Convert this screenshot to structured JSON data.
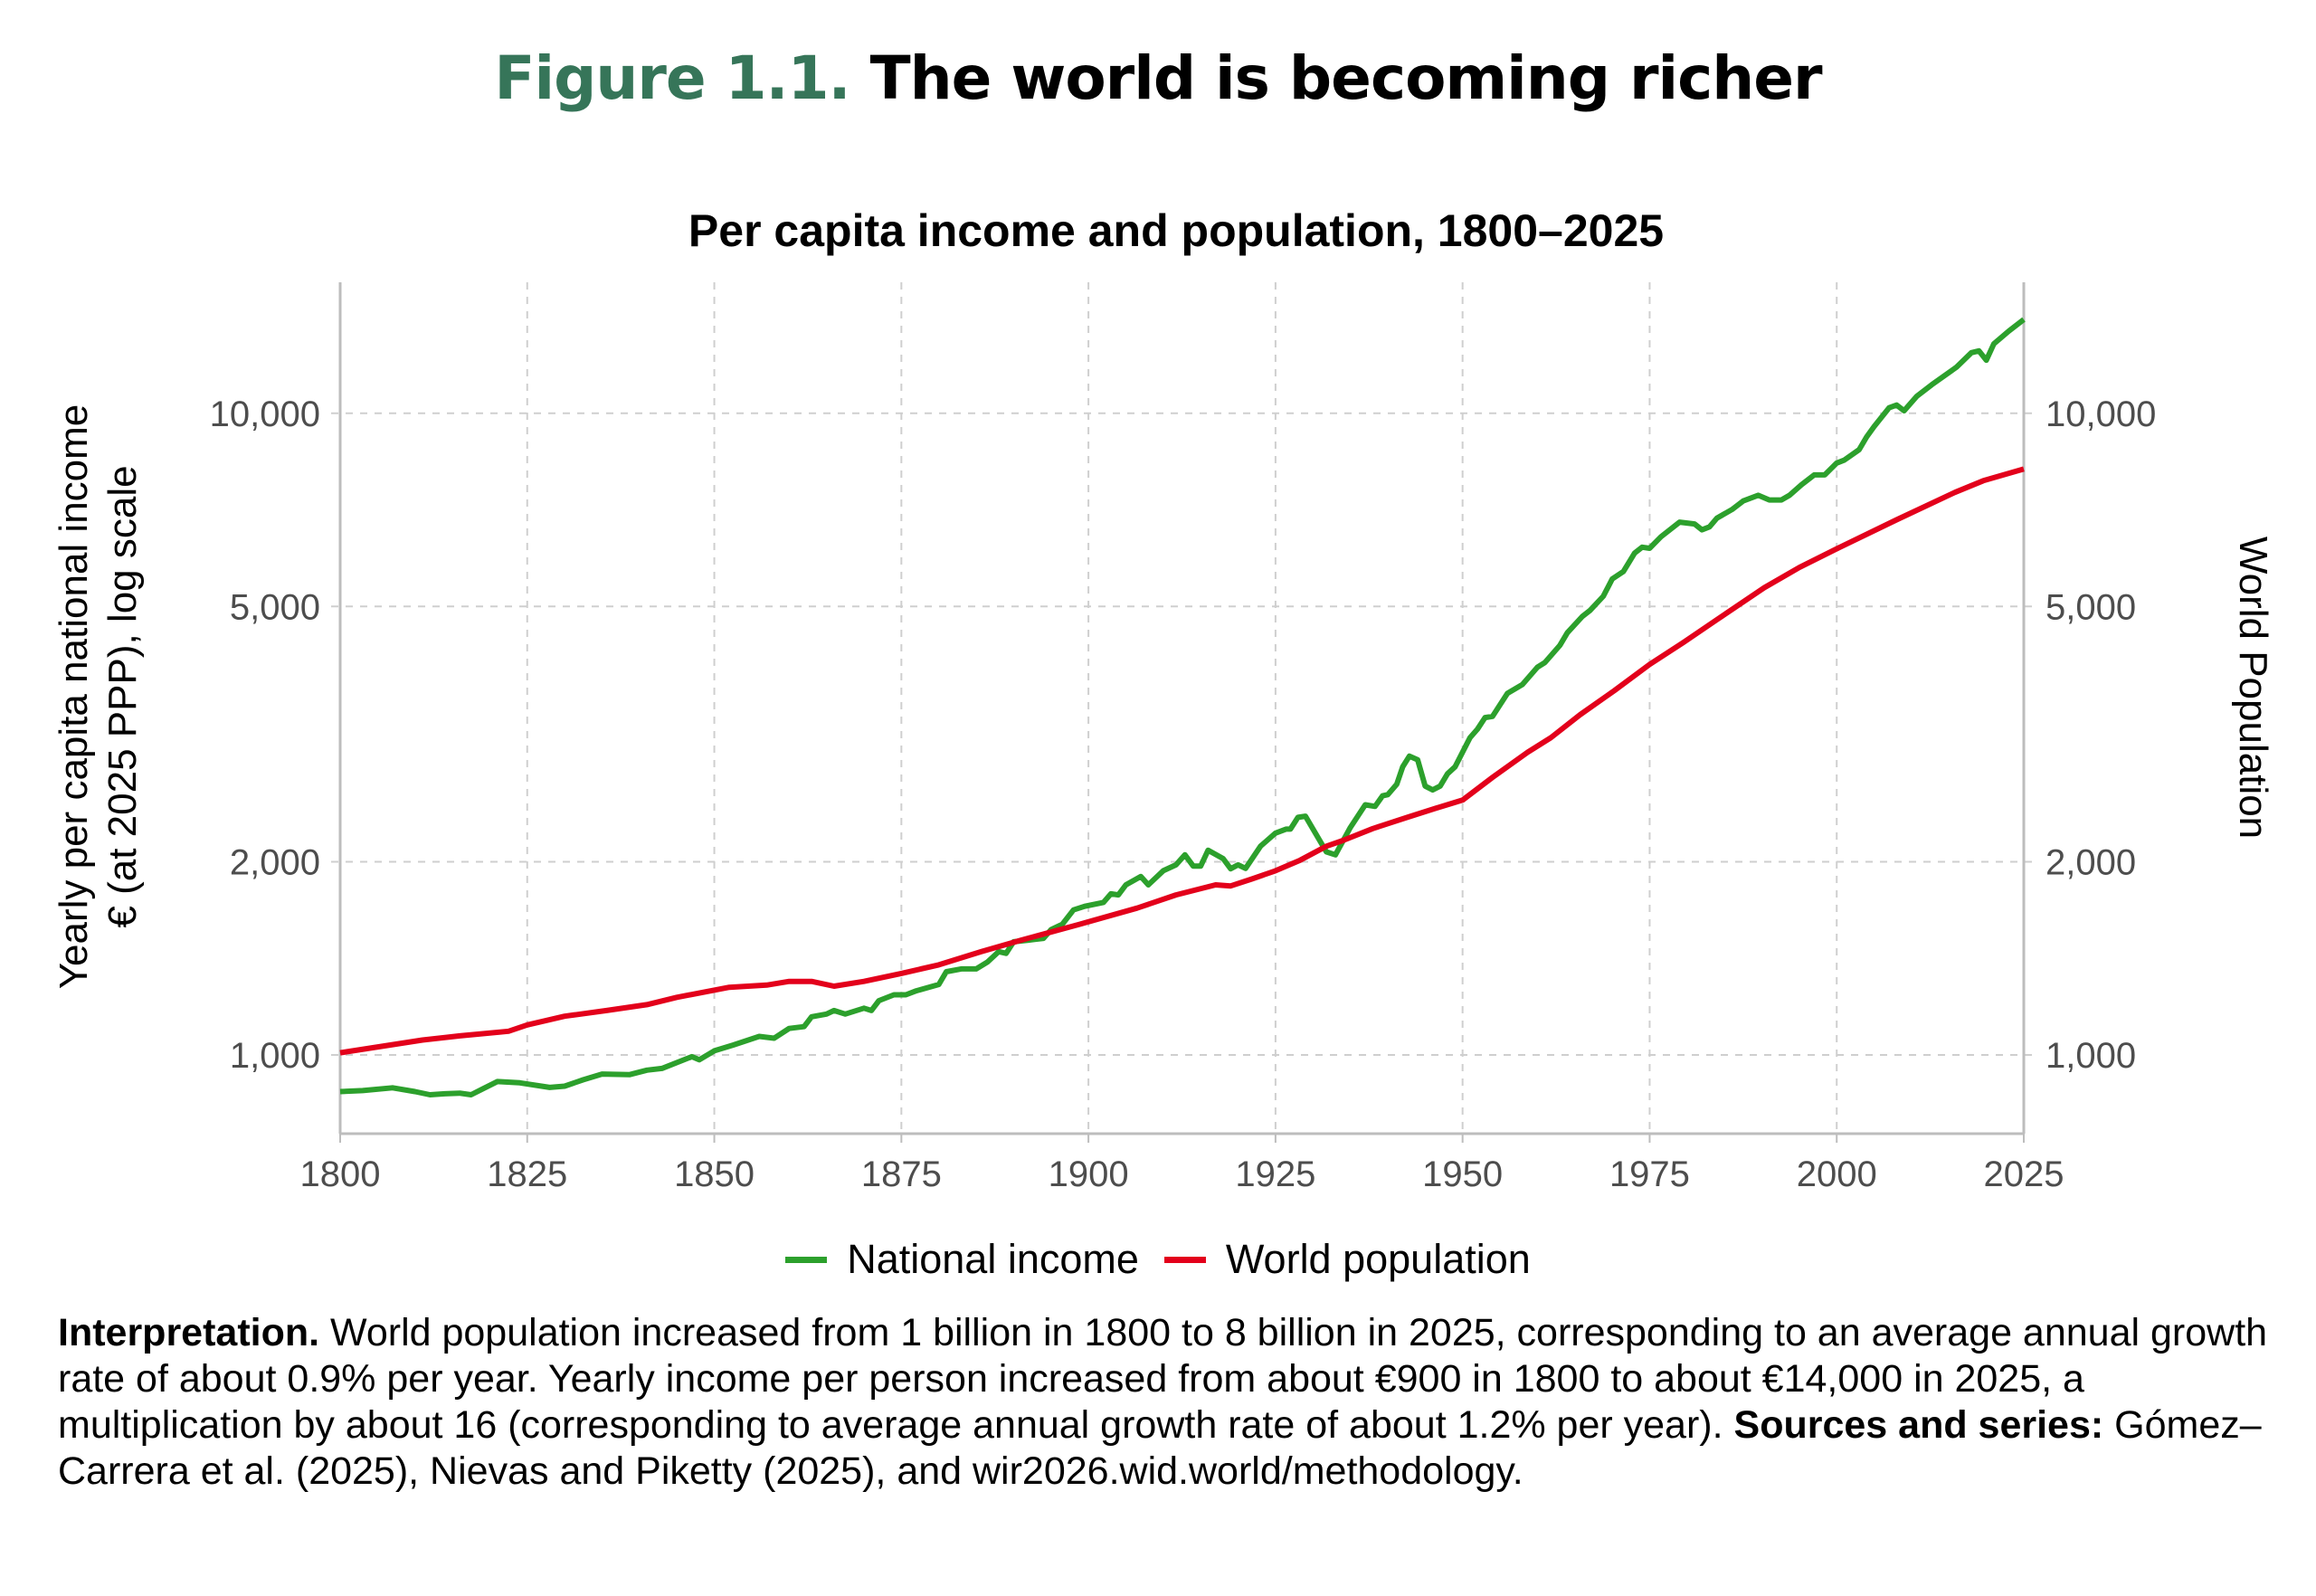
{
  "figure": {
    "label": "Figure 1.1.",
    "title": "The world is becoming richer",
    "label_color": "#367559"
  },
  "chart_data": {
    "type": "line",
    "title": "Per capita income and population, 1800–2025",
    "ylabel_line1": "Yearly per capita national income",
    "ylabel_line2": "€ (at 2025 PPP), log scale",
    "y2label": "World Population",
    "xlabel": "",
    "y_scale": "log",
    "xlim": [
      1800,
      2025
    ],
    "ylim": [
      754,
      16000
    ],
    "x_ticks": [
      "1800",
      "1825",
      "1850",
      "1875",
      "1900",
      "1925",
      "1950",
      "1975",
      "2000",
      "2025"
    ],
    "y_ticks": [
      {
        "value": 1000,
        "label": "1,000"
      },
      {
        "value": 2000,
        "label": "2,000"
      },
      {
        "value": 5000,
        "label": "5,000"
      },
      {
        "value": 10000,
        "label": "10,000"
      }
    ],
    "grid": true,
    "legend_position": "bottom",
    "series": [
      {
        "name": "National income",
        "color": "#2ca02c",
        "points": [
          [
            1800,
            877
          ],
          [
            1803,
            880
          ],
          [
            1807,
            889
          ],
          [
            1810,
            877
          ],
          [
            1812,
            867
          ],
          [
            1814,
            870
          ],
          [
            1816,
            872
          ],
          [
            1817.5,
            867
          ],
          [
            1819,
            885
          ],
          [
            1821,
            909
          ],
          [
            1824,
            905
          ],
          [
            1828,
            890
          ],
          [
            1830,
            894
          ],
          [
            1832.5,
            915
          ],
          [
            1835,
            934
          ],
          [
            1838.7,
            932
          ],
          [
            1841,
            947
          ],
          [
            1843,
            953
          ],
          [
            1847,
            994
          ],
          [
            1848,
            983
          ],
          [
            1850,
            1015
          ],
          [
            1852.5,
            1036
          ],
          [
            1856,
            1069
          ],
          [
            1858,
            1062
          ],
          [
            1860,
            1100
          ],
          [
            1862,
            1107
          ],
          [
            1863,
            1147
          ],
          [
            1865,
            1158
          ],
          [
            1866,
            1173
          ],
          [
            1867.5,
            1158
          ],
          [
            1870,
            1183
          ],
          [
            1871,
            1173
          ],
          [
            1872,
            1215
          ],
          [
            1874,
            1241
          ],
          [
            1875.6,
            1241
          ],
          [
            1877,
            1259
          ],
          [
            1880,
            1288
          ],
          [
            1881,
            1348
          ],
          [
            1883,
            1362
          ],
          [
            1885,
            1362
          ],
          [
            1886.5,
            1396
          ],
          [
            1888,
            1449
          ],
          [
            1889,
            1440
          ],
          [
            1890,
            1501
          ],
          [
            1892,
            1510
          ],
          [
            1894,
            1520
          ],
          [
            1895,
            1568
          ],
          [
            1896.5,
            1598
          ],
          [
            1898,
            1683
          ],
          [
            1899.5,
            1705
          ],
          [
            1902,
            1729
          ],
          [
            1903,
            1783
          ],
          [
            1904,
            1776
          ],
          [
            1905,
            1841
          ],
          [
            1907,
            1897
          ],
          [
            1908,
            1841
          ],
          [
            1910,
            1937
          ],
          [
            1911.7,
            1978
          ],
          [
            1912.9,
            2051
          ],
          [
            1914,
            1970
          ],
          [
            1915,
            1970
          ],
          [
            1916,
            2085
          ],
          [
            1918,
            2023
          ],
          [
            1919,
            1951
          ],
          [
            1920,
            1978
          ],
          [
            1921,
            1953
          ],
          [
            1923,
            2115
          ],
          [
            1925,
            2217
          ],
          [
            1926.4,
            2249
          ],
          [
            1927,
            2249
          ],
          [
            1928,
            2346
          ],
          [
            1929,
            2356
          ],
          [
            1931.8,
            2073
          ],
          [
            1933,
            2051
          ],
          [
            1935,
            2262
          ],
          [
            1937,
            2454
          ],
          [
            1938.3,
            2440
          ],
          [
            1939.3,
            2534
          ],
          [
            1940,
            2545
          ],
          [
            1941.2,
            2642
          ],
          [
            1942,
            2813
          ],
          [
            1942.9,
            2922
          ],
          [
            1944,
            2885
          ],
          [
            1945,
            2625
          ],
          [
            1946,
            2588
          ],
          [
            1947,
            2625
          ],
          [
            1948,
            2744
          ],
          [
            1949,
            2813
          ],
          [
            1951,
            3122
          ],
          [
            1952,
            3220
          ],
          [
            1953,
            3356
          ],
          [
            1954,
            3370
          ],
          [
            1956,
            3661
          ],
          [
            1958,
            3778
          ],
          [
            1960,
            4021
          ],
          [
            1961,
            4088
          ],
          [
            1963,
            4348
          ],
          [
            1964,
            4551
          ],
          [
            1966,
            4823
          ],
          [
            1967,
            4925
          ],
          [
            1968.8,
            5186
          ],
          [
            1970,
            5518
          ],
          [
            1971.5,
            5669
          ],
          [
            1973,
            6058
          ],
          [
            1974,
            6185
          ],
          [
            1975,
            6160
          ],
          [
            1976.5,
            6419
          ],
          [
            1979,
            6766
          ],
          [
            1981,
            6723
          ],
          [
            1982,
            6583
          ],
          [
            1983,
            6652
          ],
          [
            1984,
            6865
          ],
          [
            1986,
            7078
          ],
          [
            1987.5,
            7300
          ],
          [
            1989.5,
            7450
          ],
          [
            1991,
            7327
          ],
          [
            1992.6,
            7327
          ],
          [
            1993.7,
            7450
          ],
          [
            1995.3,
            7738
          ],
          [
            1997,
            8016
          ],
          [
            1998.4,
            8016
          ],
          [
            2000,
            8363
          ],
          [
            2001,
            8450
          ],
          [
            2003,
            8777
          ],
          [
            2004,
            9187
          ],
          [
            2005,
            9537
          ],
          [
            2007,
            10200
          ],
          [
            2008,
            10300
          ],
          [
            2009,
            10090
          ],
          [
            2010.7,
            10630
          ],
          [
            2012.7,
            11080
          ],
          [
            2016,
            11800
          ],
          [
            2018,
            12430
          ],
          [
            2019,
            12510
          ],
          [
            2020,
            12100
          ],
          [
            2021,
            12830
          ],
          [
            2023,
            13430
          ],
          [
            2025,
            14000
          ]
        ]
      },
      {
        "name": "World population",
        "color": "#e3001b",
        "points": [
          [
            1800,
            1008
          ],
          [
            1811,
            1055
          ],
          [
            1816,
            1071
          ],
          [
            1822.5,
            1089
          ],
          [
            1825,
            1114
          ],
          [
            1830,
            1149
          ],
          [
            1835.6,
            1173
          ],
          [
            1841,
            1198
          ],
          [
            1845,
            1230
          ],
          [
            1852,
            1275
          ],
          [
            1857,
            1285
          ],
          [
            1860,
            1302
          ],
          [
            1863,
            1302
          ],
          [
            1866,
            1280
          ],
          [
            1870,
            1302
          ],
          [
            1875,
            1340
          ],
          [
            1880,
            1382
          ],
          [
            1885.7,
            1449
          ],
          [
            1891,
            1510
          ],
          [
            1898.8,
            1598
          ],
          [
            1906.5,
            1694
          ],
          [
            1911.7,
            1776
          ],
          [
            1917,
            1841
          ],
          [
            1919,
            1834
          ],
          [
            1921.8,
            1880
          ],
          [
            1925,
            1937
          ],
          [
            1928.3,
            2012
          ],
          [
            1931.8,
            2115
          ],
          [
            1934,
            2159
          ],
          [
            1938,
            2253
          ],
          [
            1942.6,
            2346
          ],
          [
            1946.4,
            2423
          ],
          [
            1950,
            2496
          ],
          [
            1954,
            2708
          ],
          [
            1958.7,
            2963
          ],
          [
            1961.8,
            3122
          ],
          [
            1965.7,
            3390
          ],
          [
            1970.3,
            3698
          ],
          [
            1975,
            4061
          ],
          [
            1979.5,
            4393
          ],
          [
            1984,
            4770
          ],
          [
            1990.3,
            5348
          ],
          [
            1995,
            5751
          ],
          [
            2000,
            6148
          ],
          [
            2008,
            6823
          ],
          [
            2015.8,
            7530
          ],
          [
            2019.6,
            7850
          ],
          [
            2025,
            8187
          ]
        ]
      }
    ]
  },
  "note": {
    "interp_label": "Interpretation.",
    "interp_text": " World population increased from 1 billion in 1800 to 8 billion in 2025, corresponding to an average annual growth rate of about 0.9% per year. Yearly income per person increased from about €900 in 1800 to about €14,000 in 2025, a multiplication by about 16 (corresponding to average annual growth rate of about 1.2% per year). ",
    "sources_label": "Sources and series:",
    "sources_text": " Gómez–Carrera et al. (2025), Nievas and Piketty (2025), and wir2026.wid.world/methodology."
  }
}
